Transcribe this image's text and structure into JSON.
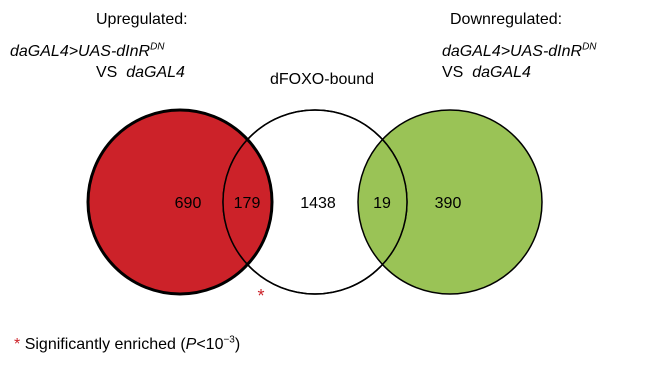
{
  "labels": {
    "left_heading": "Upregulated:",
    "left_line1_prefix": "daGAL4>UAS-dInR",
    "left_line1_sup": "DN",
    "left_line2_vs": "VS",
    "left_line2_driver": "daGAL4",
    "middle_heading": "dFOXO-bound",
    "right_heading": "Downregulated:",
    "right_line1_prefix": "daGAL4>UAS-dInR",
    "right_line1_sup": "DN",
    "right_line2_vs": "VS",
    "right_line2_driver": "daGAL4"
  },
  "regions": {
    "left_only": "690",
    "left_middle": "179",
    "middle_only": "1438",
    "middle_right": "19",
    "right_only": "390"
  },
  "marker": "*",
  "legend": {
    "star": "*",
    "text_before": "Significantly enriched (",
    "p_symbol": "P",
    "lt": "<10",
    "exponent": "−3",
    "text_after": ")"
  },
  "colors": {
    "upregulated_fill": "#cc2229",
    "downregulated_fill": "#9ac356",
    "outline": "#000000",
    "star": "#cc2229"
  }
}
